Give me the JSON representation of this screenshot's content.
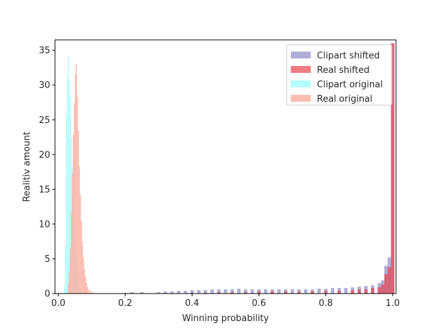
{
  "chart_data": {
    "type": "histogram",
    "xlabel": "Winning probability",
    "ylabel": "Realitiv amount",
    "xlim": [
      -0.01,
      1.01
    ],
    "ylim": [
      0,
      36.5
    ],
    "xticks": [
      {
        "value": 0.0,
        "label": "0.0"
      },
      {
        "value": 0.2,
        "label": "0.2"
      },
      {
        "value": 0.4,
        "label": "0.4"
      },
      {
        "value": 0.6,
        "label": "0.6"
      },
      {
        "value": 0.8,
        "label": "0.8"
      },
      {
        "value": 1.0,
        "label": "1.0"
      }
    ],
    "yticks": [
      {
        "value": 0,
        "label": "0"
      },
      {
        "value": 5,
        "label": "5"
      },
      {
        "value": 10,
        "label": "10"
      },
      {
        "value": 15,
        "label": "15"
      },
      {
        "value": 20,
        "label": "20"
      },
      {
        "value": 25,
        "label": "25"
      },
      {
        "value": 30,
        "label": "30"
      },
      {
        "value": 35,
        "label": "35"
      }
    ],
    "grid": false,
    "legend_position": "top-right",
    "series": [
      {
        "name": "Clipart original",
        "color": "#a6fdfd",
        "opacity": 0.85,
        "bin_width": 0.0028,
        "bins": [
          [
            0.018,
            0.9
          ],
          [
            0.021,
            6.8
          ],
          [
            0.024,
            25.6
          ],
          [
            0.027,
            31
          ],
          [
            0.03,
            34.2
          ],
          [
            0.033,
            30.8
          ],
          [
            0.036,
            28.2
          ],
          [
            0.039,
            22.5
          ],
          [
            0.042,
            18.2
          ],
          [
            0.045,
            13.5
          ],
          [
            0.048,
            9.5
          ],
          [
            0.051,
            7.4
          ],
          [
            0.054,
            5.1
          ],
          [
            0.057,
            3.3
          ],
          [
            0.06,
            2.1
          ],
          [
            0.063,
            1.2
          ],
          [
            0.066,
            0.6
          ],
          [
            0.069,
            0.3
          ]
        ]
      },
      {
        "name": "Real original",
        "color": "#fab1a4",
        "opacity": 0.85,
        "bin_width": 0.0032,
        "bins": [
          [
            0.03,
            1.5
          ],
          [
            0.033,
            3.2
          ],
          [
            0.036,
            6.5
          ],
          [
            0.039,
            11.5
          ],
          [
            0.042,
            17.2
          ],
          [
            0.045,
            22.8
          ],
          [
            0.048,
            27.4
          ],
          [
            0.051,
            31.6
          ],
          [
            0.054,
            33
          ],
          [
            0.057,
            28.5
          ],
          [
            0.06,
            23.5
          ],
          [
            0.063,
            18.3
          ],
          [
            0.066,
            14.2
          ],
          [
            0.069,
            10.5
          ],
          [
            0.072,
            7.5
          ],
          [
            0.075,
            5.2
          ],
          [
            0.078,
            3.6
          ],
          [
            0.081,
            2.4
          ],
          [
            0.084,
            1.6
          ],
          [
            0.087,
            1.0
          ],
          [
            0.091,
            0.6
          ],
          [
            0.095,
            0.4
          ],
          [
            0.1,
            0.3
          ],
          [
            0.106,
            0.2
          ]
        ]
      },
      {
        "name": "Clipart shifted",
        "color": "#8c8cc8",
        "opacity": 0.7,
        "bin_width": 0.01,
        "bins": [
          [
            0.2,
            0.1
          ],
          [
            0.22,
            0.2
          ],
          [
            0.25,
            0.2
          ],
          [
            0.3,
            0.2
          ],
          [
            0.32,
            0.3
          ],
          [
            0.34,
            0.3
          ],
          [
            0.36,
            0.4
          ],
          [
            0.38,
            0.4
          ],
          [
            0.4,
            0.5
          ],
          [
            0.42,
            0.5
          ],
          [
            0.44,
            0.5
          ],
          [
            0.46,
            0.6
          ],
          [
            0.48,
            0.6
          ],
          [
            0.5,
            0.6
          ],
          [
            0.52,
            0.6
          ],
          [
            0.54,
            0.7
          ],
          [
            0.56,
            0.6
          ],
          [
            0.58,
            0.6
          ],
          [
            0.6,
            0.6
          ],
          [
            0.62,
            0.6
          ],
          [
            0.64,
            0.6
          ],
          [
            0.66,
            0.6
          ],
          [
            0.68,
            0.6
          ],
          [
            0.7,
            0.6
          ],
          [
            0.72,
            0.6
          ],
          [
            0.74,
            0.6
          ],
          [
            0.76,
            0.6
          ],
          [
            0.78,
            0.7
          ],
          [
            0.8,
            0.7
          ],
          [
            0.82,
            0.8
          ],
          [
            0.84,
            0.8
          ],
          [
            0.86,
            0.8
          ],
          [
            0.88,
            0.9
          ],
          [
            0.9,
            1.0
          ],
          [
            0.92,
            1.1
          ],
          [
            0.94,
            1.2
          ],
          [
            0.96,
            1.5
          ],
          [
            0.97,
            1.9
          ],
          [
            0.98,
            4.0
          ],
          [
            0.99,
            5.2
          ],
          [
            1.0,
            36
          ]
        ]
      },
      {
        "name": "Real shifted",
        "color": "#e8434f",
        "opacity": 0.7,
        "bin_width": 0.01,
        "bins": [
          [
            0.4,
            0.1
          ],
          [
            0.44,
            0.1
          ],
          [
            0.48,
            0.2
          ],
          [
            0.52,
            0.2
          ],
          [
            0.56,
            0.2
          ],
          [
            0.6,
            0.3
          ],
          [
            0.64,
            0.3
          ],
          [
            0.68,
            0.3
          ],
          [
            0.72,
            0.3
          ],
          [
            0.76,
            0.3
          ],
          [
            0.8,
            0.4
          ],
          [
            0.84,
            0.4
          ],
          [
            0.88,
            0.5
          ],
          [
            0.9,
            0.6
          ],
          [
            0.92,
            0.6
          ],
          [
            0.94,
            0.8
          ],
          [
            0.96,
            0.9
          ],
          [
            0.97,
            1.3
          ],
          [
            0.98,
            2.8
          ],
          [
            0.99,
            3.8
          ],
          [
            1.0,
            36
          ]
        ]
      }
    ]
  }
}
